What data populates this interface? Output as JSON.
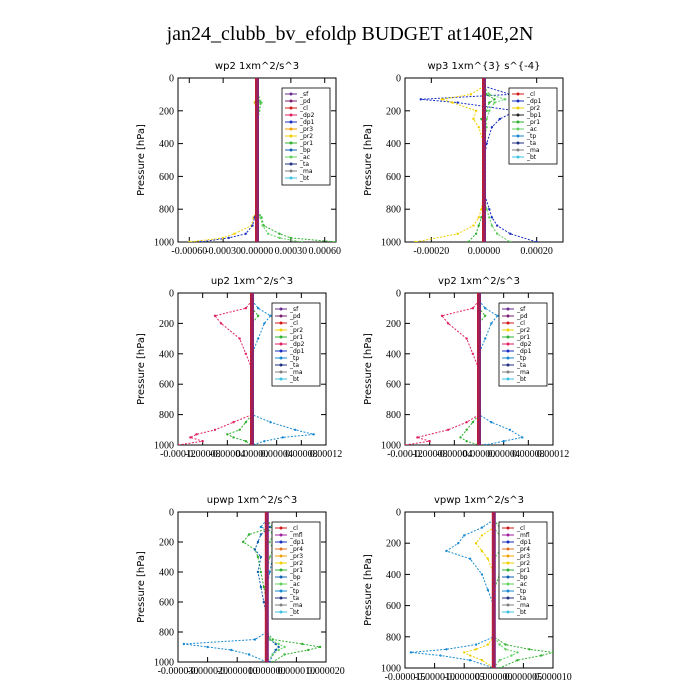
{
  "figure_title": "jan24_clubb_bv_efoldp  BUDGET at140E,2N",
  "chart_data": [
    {
      "type": "line",
      "title": "wp2  1xm^2/s^3",
      "ylabel": "Pressure [hPa]",
      "ylim": [
        1000,
        0
      ],
      "xlim": [
        -0.0007,
        0.0007
      ],
      "y_ticks": [
        "0",
        "200",
        "400",
        "600",
        "800",
        "1000"
      ],
      "x_ticks": [
        "-0.00060",
        "-0.00030",
        "0.00000",
        "0.00030",
        "0.00060"
      ],
      "x_tick_values": [
        -0.0006,
        -0.0003,
        0,
        0.0003,
        0.0006
      ],
      "legend_placement": "upper-right",
      "legend": [
        "_sf",
        "_pd",
        "_cl",
        "_dp2",
        "_dp1",
        "_pr3",
        "_pr2",
        "_pr1",
        "_bp",
        "_ac",
        "_ta",
        "_ma",
        "_bt"
      ],
      "pressure": [
        50,
        100,
        150,
        200,
        300,
        400,
        500,
        600,
        700,
        800,
        850,
        900,
        950,
        975,
        1000
      ],
      "series": [
        {
          "name": "_pr2",
          "values": [
            0,
            0,
            -2e-05,
            0,
            0,
            0,
            0,
            0,
            0,
            0,
            -3e-05,
            -5e-05,
            -0.0002,
            -0.0003,
            -0.0006
          ]
        },
        {
          "name": "_pr1",
          "values": [
            0,
            0,
            3e-05,
            2e-05,
            0,
            0,
            0,
            0,
            0,
            0,
            4e-05,
            6e-05,
            0.0002,
            0.0003,
            0.0007
          ]
        },
        {
          "name": "_ac",
          "values": [
            0,
            1e-05,
            4e-05,
            2e-05,
            0,
            0,
            0,
            0,
            0,
            0,
            3e-05,
            5e-05,
            0.0001,
            0.0002,
            0.0004
          ]
        },
        {
          "name": "_dp1",
          "values": [
            0,
            0,
            -1e-05,
            0,
            0,
            0,
            0,
            0,
            0,
            0,
            -2e-05,
            -4e-05,
            -0.0001,
            -0.00025,
            -0.0005
          ]
        }
      ]
    },
    {
      "type": "line",
      "title": "wp3  1xm^{3} s^{-4}",
      "ylabel": "Pressure [hPa]",
      "ylim": [
        1000,
        0
      ],
      "xlim": [
        -0.0003,
        0.0003
      ],
      "y_ticks": [
        "0",
        "200",
        "400",
        "600",
        "800",
        "1000"
      ],
      "x_ticks": [
        "-0.00020",
        "0.00000",
        "0.00020"
      ],
      "x_tick_values": [
        -0.0002,
        0,
        0.0002
      ],
      "legend_placement": "upper-right",
      "legend": [
        "_cl",
        "_dp1",
        "_pr2",
        "_bp1",
        "_pr1",
        "_ac",
        "_tp",
        "_ta",
        "_ma",
        "_bt"
      ],
      "pressure": [
        50,
        100,
        130,
        150,
        200,
        250,
        300,
        400,
        500,
        600,
        700,
        800,
        850,
        900,
        950,
        1000
      ],
      "series": [
        {
          "name": "_dp1",
          "values": [
            0,
            0.0001,
            -0.00024,
            -0.0001,
            0.00012,
            6e-05,
            3e-05,
            1e-05,
            0,
            0,
            0,
            2e-05,
            3e-05,
            5e-05,
            0.0001,
            0.0002
          ]
        },
        {
          "name": "_pr2",
          "values": [
            0,
            -5e-05,
            -0.00016,
            -0.00012,
            -3e-05,
            -4e-05,
            -2e-05,
            0,
            0,
            0,
            0,
            -1e-05,
            -2e-05,
            -4e-05,
            -0.0001,
            -0.00026
          ]
        },
        {
          "name": "_ac",
          "values": [
            0,
            2e-05,
            8e-05,
            4e-05,
            2e-05,
            1e-05,
            1e-05,
            0,
            0,
            0,
            0,
            1e-05,
            2e-05,
            3e-05,
            5e-05,
            0.0001
          ]
        },
        {
          "name": "_pr1",
          "values": [
            0,
            1e-05,
            4e-05,
            2e-05,
            1e-05,
            -1e-05,
            0,
            0,
            0,
            0,
            0,
            0,
            -1e-05,
            -2e-05,
            -3e-05,
            -6e-05
          ]
        }
      ]
    },
    {
      "type": "line",
      "title": "up2  1xm^2/s^3",
      "ylabel": "Pressure [hPa]",
      "ylim": [
        1000,
        0
      ],
      "xlim": [
        -0.00012,
        0.00012
      ],
      "y_ticks": [
        "0",
        "200",
        "400",
        "600",
        "800",
        "1000"
      ],
      "x_ticks": [
        "-0.00012",
        "-0.00008",
        "-0.00004",
        "0.00000",
        "0.00004",
        "0.00008",
        "0.00012"
      ],
      "x_tick_values": [
        -0.00012,
        -8e-05,
        -4e-05,
        0,
        4e-05,
        8e-05,
        0.00012
      ],
      "legend_placement": "upper-right",
      "legend": [
        "_sf",
        "_pd",
        "_cl",
        "_pr2",
        "_pr1",
        "_dp2",
        "_dp1",
        "_tp",
        "_ta",
        "_ma",
        "_bt"
      ],
      "pressure": [
        50,
        100,
        150,
        200,
        300,
        400,
        500,
        600,
        700,
        800,
        850,
        900,
        930,
        950,
        975,
        1000
      ],
      "series": [
        {
          "name": "_dp2",
          "values": [
            0,
            -1e-05,
            -6e-05,
            -5e-05,
            -2e-05,
            -1e-05,
            0,
            0,
            0,
            0,
            -3e-05,
            -6e-05,
            -9e-05,
            -0.0001,
            -8e-05,
            -0.00012
          ]
        },
        {
          "name": "_tp",
          "values": [
            0,
            1e-05,
            3e-05,
            2e-05,
            1e-05,
            0,
            0,
            0,
            0,
            0,
            3e-05,
            7e-05,
            0.0001,
            5e-05,
            2e-05,
            0
          ]
        },
        {
          "name": "_pr1",
          "values": [
            0,
            0,
            1e-05,
            0,
            0,
            0,
            0,
            0,
            0,
            0,
            -1e-05,
            -2e-05,
            -4e-05,
            -3e-05,
            -1e-05,
            0
          ]
        }
      ]
    },
    {
      "type": "line",
      "title": "vp2  1xm^2/s^3",
      "ylabel": "Pressure [hPa]",
      "ylim": [
        1000,
        0
      ],
      "xlim": [
        -0.00012,
        0.00012
      ],
      "y_ticks": [
        "0",
        "200",
        "400",
        "600",
        "800",
        "1000"
      ],
      "x_ticks": [
        "-0.00012",
        "-0.00008",
        "-0.00004",
        "0.00000",
        "0.00004",
        "0.00008",
        "0.00012"
      ],
      "x_tick_values": [
        -0.00012,
        -8e-05,
        -4e-05,
        0,
        4e-05,
        8e-05,
        0.00012
      ],
      "legend_placement": "upper-right",
      "legend": [
        "_sf",
        "_pd",
        "_cl",
        "_pr2",
        "_pr1",
        "_dp2",
        "_dp1",
        "_tp",
        "_ta",
        "_ma",
        "_bt"
      ],
      "pressure": [
        50,
        100,
        150,
        200,
        300,
        400,
        500,
        600,
        700,
        800,
        850,
        900,
        950,
        975,
        1000
      ],
      "series": [
        {
          "name": "_dp2",
          "values": [
            0,
            -1e-05,
            -6e-05,
            -5e-05,
            -2e-05,
            -1e-05,
            0,
            0,
            0,
            0,
            -2e-05,
            -5e-05,
            -0.0001,
            -8e-05,
            -0.00012
          ]
        },
        {
          "name": "_tp",
          "values": [
            0,
            1e-05,
            3e-05,
            2e-05,
            1e-05,
            0,
            0,
            0,
            0,
            0,
            2e-05,
            5e-05,
            7e-05,
            4e-05,
            1e-05
          ]
        },
        {
          "name": "_pr1",
          "values": [
            0,
            0,
            1e-05,
            0,
            0,
            0,
            0,
            0,
            0,
            0,
            -1e-05,
            -2e-05,
            -3e-05,
            -2e-05,
            0
          ]
        }
      ]
    },
    {
      "type": "line",
      "title": "upwp  1xm^2/s^3",
      "ylabel": "Pressure [hPa]",
      "ylim": [
        1000,
        0
      ],
      "xlim": [
        -3e-05,
        2e-05
      ],
      "y_ticks": [
        "0",
        "200",
        "400",
        "600",
        "800",
        "1000"
      ],
      "x_ticks": [
        "-0.000030",
        "-0.000020",
        "-0.000010",
        "0.000000",
        "0.000010",
        "0.000020"
      ],
      "x_tick_values": [
        -3e-05,
        -2e-05,
        -1e-05,
        0,
        1e-05,
        2e-05
      ],
      "legend_placement": "upper-right",
      "legend": [
        "_cl",
        "_mfl",
        "_dp1",
        "_pr4",
        "_pr3",
        "_pr2",
        "_pr1",
        "_bp",
        "_ac",
        "_tp",
        "_ta",
        "_ma",
        "_bt"
      ],
      "pressure": [
        50,
        100,
        150,
        200,
        250,
        300,
        400,
        500,
        600,
        700,
        800,
        850,
        880,
        900,
        920,
        950,
        1000
      ],
      "series": [
        {
          "name": "_pr1",
          "values": [
            0,
            2e-06,
            -6e-06,
            -8e-06,
            -4e-06,
            -3e-06,
            -2e-06,
            -1e-06,
            0,
            0,
            0,
            2e-06,
            1.2e-05,
            1.8e-05,
            1.4e-05,
            6e-06,
            2e-06
          ]
        },
        {
          "name": "_tp",
          "values": [
            0,
            -2e-06,
            4e-06,
            8e-06,
            3e-06,
            2e-06,
            1e-06,
            0,
            0,
            0,
            0,
            -4e-06,
            -2.8e-05,
            -2e-05,
            -1.2e-05,
            -6e-06,
            0
          ]
        },
        {
          "name": "_bp",
          "values": [
            0,
            1e-06,
            -2e-06,
            -3e-06,
            -4e-06,
            -2e-06,
            -3e-06,
            -2e-06,
            -1e-06,
            0,
            0,
            1e-06,
            3e-06,
            4e-06,
            3e-06,
            2e-06,
            1e-06
          ]
        },
        {
          "name": "_ac",
          "values": [
            0,
            0,
            2e-06,
            1e-06,
            2e-06,
            1e-06,
            0,
            0,
            0,
            0,
            0,
            1e-06,
            4e-06,
            6e-06,
            4e-06,
            2e-06,
            0
          ]
        }
      ]
    },
    {
      "type": "line",
      "title": "vpwp  1xm^2/s^3",
      "ylabel": "Pressure [hPa]",
      "ylim": [
        1000,
        0
      ],
      "xlim": [
        -1.5e-05,
        1e-05
      ],
      "y_ticks": [
        "0",
        "200",
        "400",
        "600",
        "800",
        "1000"
      ],
      "x_ticks": [
        "-0.000015",
        "-0.000010",
        "-0.000005",
        "0.000000",
        "0.000005",
        "0.000010"
      ],
      "x_tick_values": [
        -1.5e-05,
        -1e-05,
        -5e-06,
        0,
        5e-06,
        1e-05
      ],
      "legend_placement": "upper-right",
      "legend": [
        "_cl",
        "_mfl",
        "_dp1",
        "_pr4",
        "_pr3",
        "_pr2",
        "_pr1",
        "_bp",
        "_ac",
        "_tp",
        "_ta",
        "_ma",
        "_bt"
      ],
      "pressure": [
        50,
        100,
        150,
        200,
        250,
        300,
        400,
        500,
        600,
        700,
        800,
        850,
        880,
        900,
        920,
        950,
        1000
      ],
      "series": [
        {
          "name": "_pr1",
          "values": [
            0,
            1e-06,
            4e-06,
            6e-06,
            3e-06,
            2e-06,
            1e-06,
            0,
            0,
            0,
            0,
            2e-06,
            6e-06,
            1e-05,
            8e-06,
            4e-06,
            1e-06
          ]
        },
        {
          "name": "_tp",
          "values": [
            0,
            -2e-06,
            -5e-06,
            -6e-06,
            -8e-06,
            -4e-06,
            -2e-06,
            -1e-06,
            0,
            0,
            0,
            -3e-06,
            -8e-06,
            -1.4e-05,
            -9e-06,
            -4e-06,
            0
          ]
        },
        {
          "name": "_pr2",
          "values": [
            0,
            0,
            -2e-06,
            -3e-06,
            -2e-06,
            -1e-06,
            0,
            0,
            0,
            0,
            0,
            -1e-06,
            -3e-06,
            -5e-06,
            -4e-06,
            -2e-06,
            0
          ]
        },
        {
          "name": "_ac",
          "values": [
            0,
            0,
            1e-06,
            2e-06,
            1e-06,
            0,
            0,
            0,
            0,
            0,
            0,
            1e-06,
            2e-06,
            4e-06,
            3e-06,
            1e-06,
            0
          ]
        }
      ]
    }
  ],
  "series_colors": {
    "_sf": "#6a2a8c",
    "_pd": "#7a1f6f",
    "_cl": "#d01a1a",
    "_dp2": "#e02060",
    "_dp1": "#1a2fc0",
    "_pr3": "#f0a000",
    "_pr2": "#f0d000",
    "_pr1": "#30b030",
    "_bp": "#1060b0",
    "_ac": "#60d060",
    "_tp": "#1a8ad0",
    "_ta": "#203080",
    "_ma": "#808080",
    "_bt": "#40c0e0",
    "_bp1": "#202020",
    "_mfl": "#a020a0",
    "_pr4": "#e07020"
  }
}
